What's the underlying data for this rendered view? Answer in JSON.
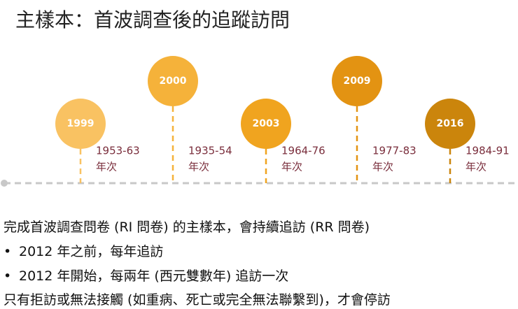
{
  "title": "主樣本：首波調查後的追蹤訪問",
  "timeline": [
    {
      "year": "1999",
      "range": "1953-63",
      "unit": "年次"
    },
    {
      "year": "2000",
      "range": "1935-54",
      "unit": "年次"
    },
    {
      "year": "2003",
      "range": "1964-76",
      "unit": "年次"
    },
    {
      "year": "2009",
      "range": "1977-83",
      "unit": "年次"
    },
    {
      "year": "2016",
      "range": "1984-91",
      "unit": "年次"
    }
  ],
  "body": {
    "intro": "完成首波調查問卷 (RI 問卷) 的主樣本，會持續追訪 (RR 問卷)",
    "bullets": [
      "2012 年之前，每年追訪",
      "2012 年開始，每兩年 (西元雙數年) 追訪一次"
    ],
    "closing": "只有拒訪或無法接觸 (如重病、死亡或完全無法聯繫到)，才會停訪"
  }
}
